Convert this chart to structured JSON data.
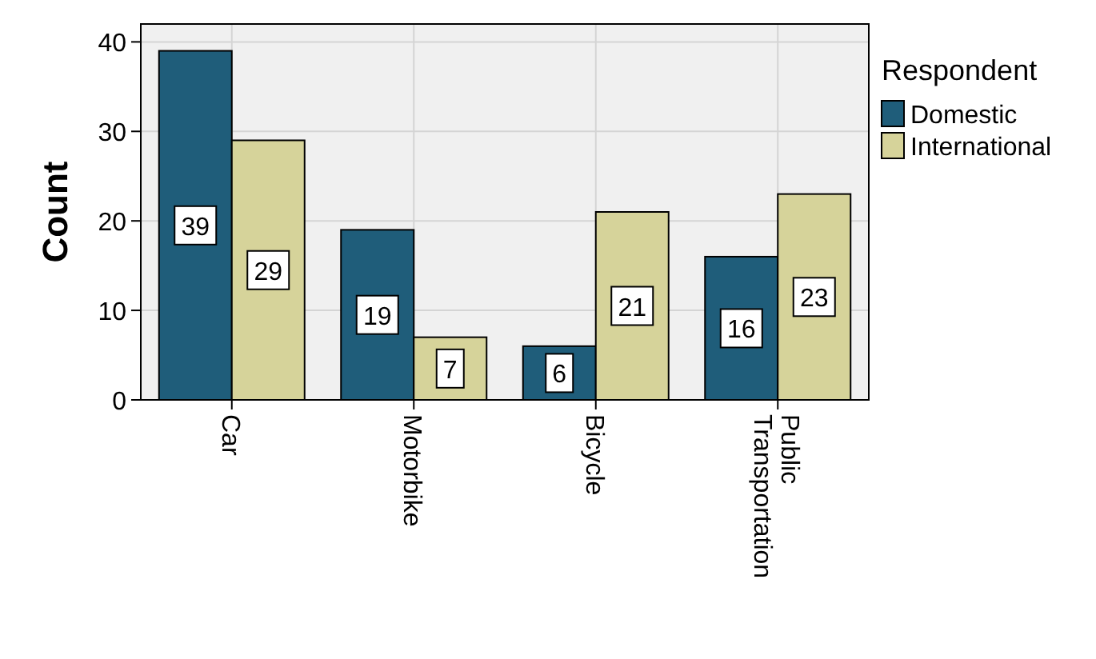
{
  "chart_data": {
    "type": "bar",
    "ylabel": "Count",
    "legend_title": "Respondent",
    "categories": [
      "Car",
      "Motorbike",
      "Bicycle",
      "Public Transportation"
    ],
    "series": [
      {
        "name": "Domestic",
        "color": "#1f5d7a",
        "values": [
          39,
          19,
          6,
          16
        ]
      },
      {
        "name": "International",
        "color": "#d6d39a",
        "values": [
          29,
          7,
          21,
          23
        ]
      }
    ],
    "ylim": [
      0,
      42
    ],
    "yticks": [
      0,
      10,
      20,
      30,
      40
    ],
    "grid": true,
    "legend": "right",
    "data_labels": true
  }
}
